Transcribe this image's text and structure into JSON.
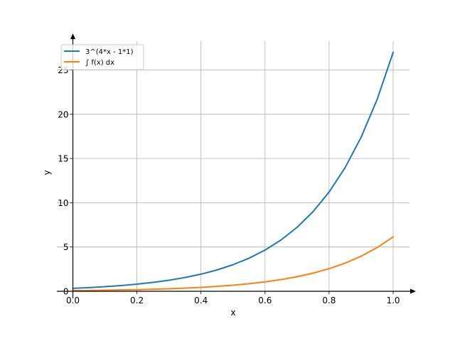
{
  "chart_data": {
    "type": "line",
    "title": "",
    "xlabel": "x",
    "ylabel": "y",
    "xlim": [
      0.0,
      1.05
    ],
    "ylim": [
      0,
      28
    ],
    "x_ticks": [
      0.0,
      0.2,
      0.4,
      0.6,
      0.8,
      1.0
    ],
    "x_tick_labels": [
      "0.0",
      "0.2",
      "0.4",
      "0.6",
      "0.8",
      "1.0"
    ],
    "y_ticks": [
      0,
      5,
      10,
      15,
      20,
      25
    ],
    "y_tick_labels": [
      "0",
      "5",
      "10",
      "15",
      "20",
      "25"
    ],
    "grid": true,
    "legend_position": "top-left",
    "x": [
      0.0,
      0.05,
      0.1,
      0.15,
      0.2,
      0.25,
      0.3,
      0.35,
      0.4,
      0.45,
      0.5,
      0.55,
      0.6,
      0.65,
      0.7,
      0.75,
      0.8,
      0.85,
      0.9,
      0.95,
      1.0
    ],
    "series": [
      {
        "name": "3^(4*x - 1*1)",
        "color": "#1f77b4",
        "values": [
          0.333,
          0.415,
          0.517,
          0.644,
          0.802,
          1.0,
          1.245,
          1.552,
          1.933,
          2.408,
          3.0,
          3.737,
          4.656,
          5.8,
          7.225,
          9.0,
          11.21,
          13.97,
          17.4,
          21.67,
          27.0
        ]
      },
      {
        "name": "∫ f(x) dx",
        "color": "#ff7f0e",
        "values": [
          0.076,
          0.094,
          0.118,
          0.147,
          0.183,
          0.228,
          0.283,
          0.353,
          0.44,
          0.548,
          0.683,
          0.851,
          1.06,
          1.32,
          1.644,
          2.048,
          2.552,
          3.179,
          3.96,
          4.933,
          6.145
        ]
      }
    ]
  }
}
